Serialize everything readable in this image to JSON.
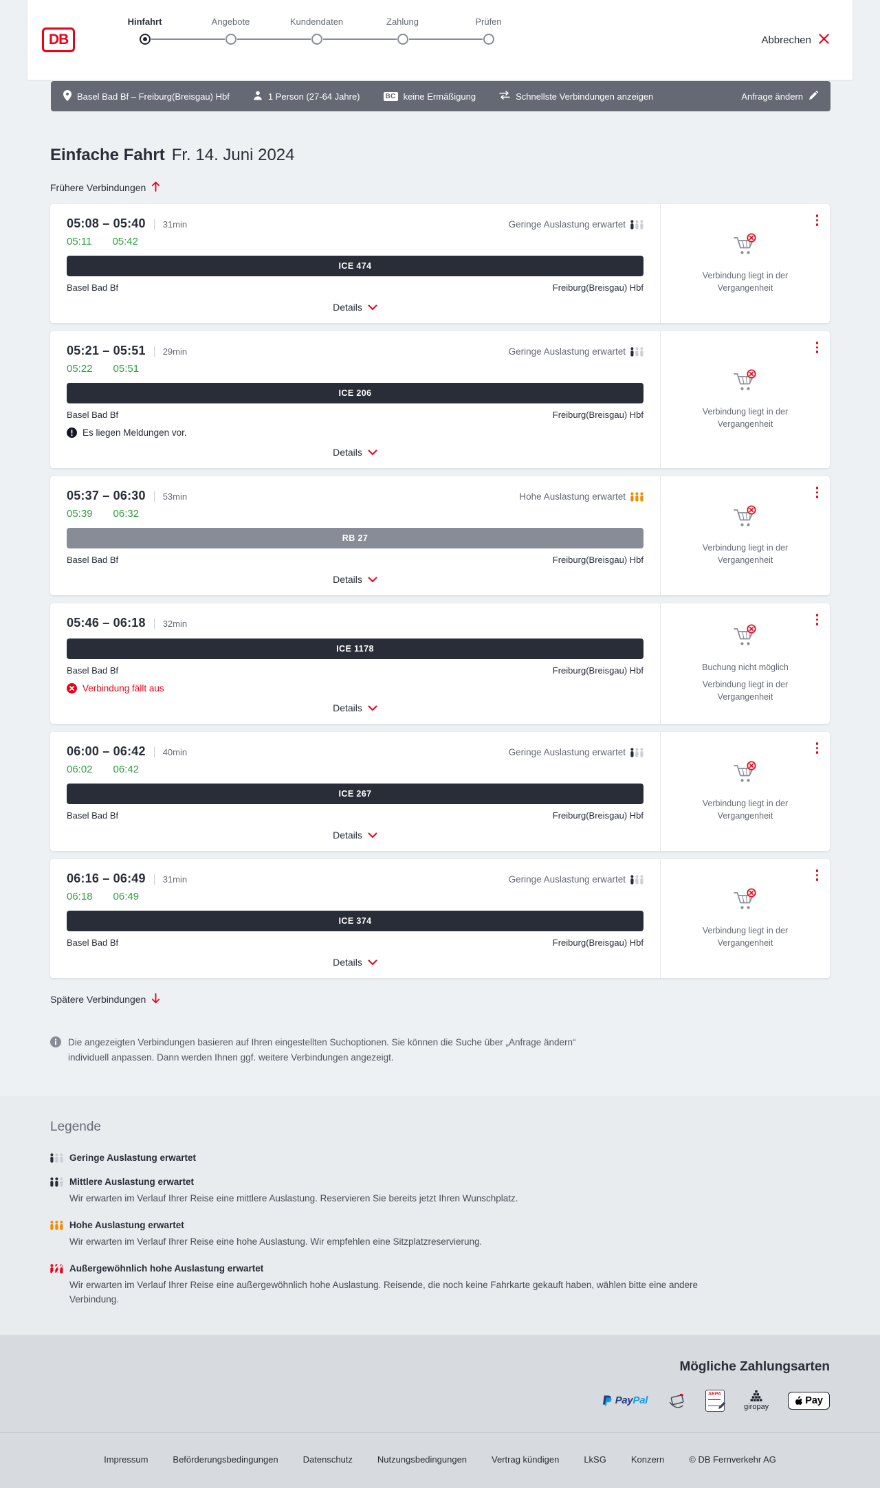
{
  "ui": {
    "details_label": "Details",
    "earlier_label": "Frühere Verbindungen",
    "later_label": "Spätere Verbindungen"
  },
  "header": {
    "logo": "DB",
    "steps": [
      {
        "label": "Hinfahrt",
        "active": true
      },
      {
        "label": "Angebote",
        "active": false
      },
      {
        "label": "Kundendaten",
        "active": false
      },
      {
        "label": "Zahlung",
        "active": false
      },
      {
        "label": "Prüfen",
        "active": false
      }
    ],
    "cancel_label": "Abbrechen"
  },
  "toolbar": {
    "route": "Basel Bad Bf – Freiburg(Breisgau) Hbf",
    "passengers": "1 Person (27-64 Jahre)",
    "discount_badge": "BC",
    "discount": "keine Ermäßigung",
    "fastest": "Schnellste Verbindungen anzeigen",
    "change_request": "Anfrage ändern"
  },
  "page": {
    "title": "Einfache Fahrt",
    "date": "Fr. 14. Juni 2024",
    "info_note": "Die angezeigten Verbindungen basieren auf Ihren eingestellten Suchoptionen. Sie können die Suche über „Anfrage ändern“ individuell anpassen. Dann werden Ihnen ggf. weitere Verbindungen angezeigt."
  },
  "connections": [
    {
      "times": "05:08 – 05:40",
      "duration": "31min",
      "realtime": {
        "dep": "05:11",
        "arr": "05:42"
      },
      "train": "ICE 474",
      "train_type": "ice",
      "from": "Basel Bad Bf",
      "to": "Freiburg(Breisgau) Hbf",
      "occupancy": {
        "label": "Geringe Auslastung erwartet",
        "level": "low"
      },
      "message": null,
      "side": {
        "lines": [
          "Verbindung liegt in der Vergangenheit"
        ]
      }
    },
    {
      "times": "05:21 – 05:51",
      "duration": "29min",
      "realtime": {
        "dep": "05:22",
        "arr": "05:51"
      },
      "train": "ICE 206",
      "train_type": "ice",
      "from": "Basel Bad Bf",
      "to": "Freiburg(Breisgau) Hbf",
      "occupancy": {
        "label": "Geringe Auslastung erwartet",
        "level": "low"
      },
      "message": {
        "type": "notice",
        "text": "Es liegen Meldungen vor."
      },
      "side": {
        "lines": [
          "Verbindung liegt in der Vergangenheit"
        ]
      }
    },
    {
      "times": "05:37 – 06:30",
      "duration": "53min",
      "realtime": {
        "dep": "05:39",
        "arr": "06:32"
      },
      "train": "RB 27",
      "train_type": "regional",
      "from": "Basel Bad Bf",
      "to": "Freiburg(Breisgau) Hbf",
      "occupancy": {
        "label": "Hohe Auslastung erwartet",
        "level": "high"
      },
      "message": null,
      "side": {
        "lines": [
          "Verbindung liegt in der Vergangenheit"
        ]
      }
    },
    {
      "times": "05:46 – 06:18",
      "duration": "32min",
      "realtime": null,
      "train": "ICE 1178",
      "train_type": "ice",
      "from": "Basel Bad Bf",
      "to": "Freiburg(Breisgau) Hbf",
      "occupancy": null,
      "message": {
        "type": "cancelled",
        "text": "Verbindung fällt aus"
      },
      "side": {
        "lines": [
          "Buchung nicht möglich",
          "Verbindung liegt in der Vergangenheit"
        ]
      }
    },
    {
      "times": "06:00 – 06:42",
      "duration": "40min",
      "realtime": {
        "dep": "06:02",
        "arr": "06:42"
      },
      "train": "ICE 267",
      "train_type": "ice",
      "from": "Basel Bad Bf",
      "to": "Freiburg(Breisgau) Hbf",
      "occupancy": {
        "label": "Geringe Auslastung erwartet",
        "level": "low"
      },
      "message": null,
      "side": {
        "lines": [
          "Verbindung liegt in der Vergangenheit"
        ]
      }
    },
    {
      "times": "06:16 – 06:49",
      "duration": "31min",
      "realtime": {
        "dep": "06:18",
        "arr": "06:49"
      },
      "train": "ICE 374",
      "train_type": "ice",
      "from": "Basel Bad Bf",
      "to": "Freiburg(Breisgau) Hbf",
      "occupancy": {
        "label": "Geringe Auslastung erwartet",
        "level": "low"
      },
      "message": null,
      "side": {
        "lines": [
          "Verbindung liegt in der Vergangenheit"
        ]
      }
    }
  ],
  "legend": {
    "title": "Legende",
    "items": [
      {
        "level": "low",
        "label": "Geringe Auslastung erwartet",
        "desc": null
      },
      {
        "level": "medium",
        "label": "Mittlere Auslastung erwartet",
        "desc": "Wir erwarten im Verlauf Ihrer Reise eine mittlere Auslastung. Reservieren Sie bereits jetzt Ihren Wunschplatz."
      },
      {
        "level": "high",
        "label": "Hohe Auslastung erwartet",
        "desc": "Wir erwarten im Verlauf Ihrer Reise eine hohe Auslastung. Wir empfehlen eine Sitzplatzreservierung."
      },
      {
        "level": "exceptional",
        "label": "Außergewöhnlich hohe Auslastung erwartet",
        "desc": "Wir erwarten im Verlauf Ihrer Reise eine außergewöhnlich hohe Auslastung. Reisende, die noch keine Fahrkarte gekauft haben, wählen bitte eine andere Verbindung."
      }
    ]
  },
  "payment": {
    "title": "Mögliche Zahlungsarten",
    "methods": [
      "PayPal",
      "Kreditkarte",
      "SEPA-Lastschrift",
      "giropay",
      "Apple Pay"
    ],
    "icon_texts": {
      "paypal_1": "Pay",
      "paypal_2": "Pal",
      "sepa": "SEPA",
      "giropay": "giropay",
      "applepay": "Pay"
    }
  },
  "footer": {
    "links": [
      "Impressum",
      "Beförderungsbedingungen",
      "Datenschutz",
      "Nutzungsbedingungen",
      "Vertrag kündigen",
      "LkSG",
      "Konzern"
    ],
    "copyright": "© DB Fernverkehr AG"
  },
  "colors": {
    "brand_red": "#ec0016",
    "dark": "#282d37",
    "green": "#2f9e41",
    "orange": "#f08c00",
    "toolbar_gray": "#646973",
    "regional_gray": "#878c96"
  }
}
